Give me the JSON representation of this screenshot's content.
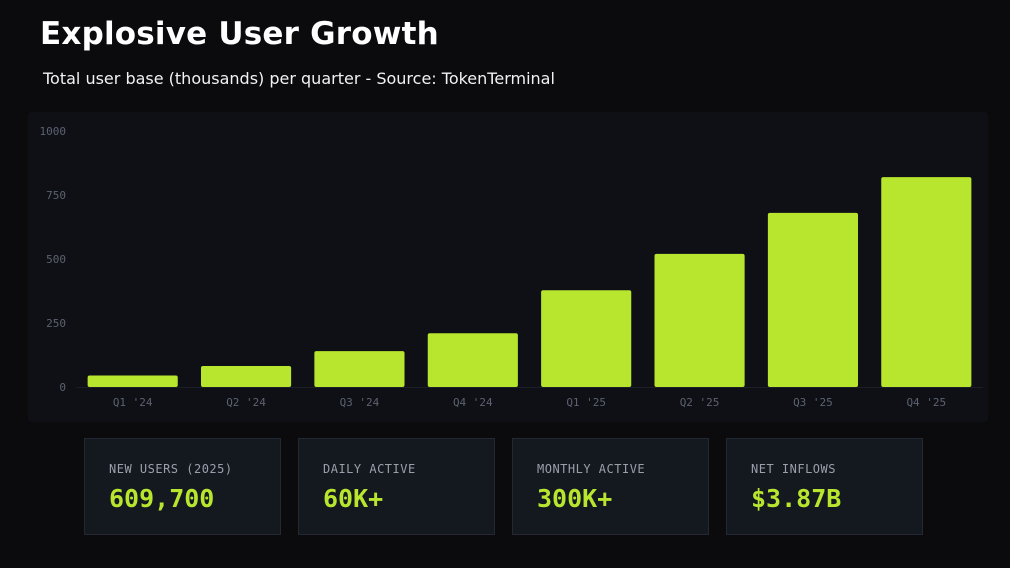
{
  "header": {
    "title": "Explosive User Growth",
    "subtitle": "Total user base (thousands) per quarter - Source: TokenTerminal"
  },
  "colors": {
    "background": "#0b0b0e",
    "panel": "#0e1016",
    "accent": "#b8e62e",
    "muted_text": "#5d6270"
  },
  "chart_data": {
    "type": "bar",
    "categories": [
      "Q1 '24",
      "Q2 '24",
      "Q3 '24",
      "Q4 '24",
      "Q1 '25",
      "Q2 '25",
      "Q3 '25",
      "Q4 '25"
    ],
    "values": [
      45,
      82,
      140,
      210,
      378,
      520,
      680,
      820
    ],
    "title": "Explosive User Growth",
    "subtitle": "Total user base (thousands) per quarter - Source: TokenTerminal",
    "ylim": [
      0,
      1000
    ],
    "yticks": [
      0,
      250,
      500,
      750,
      1000
    ],
    "grid": false,
    "bar_color": "#b8e62e"
  },
  "stats": [
    {
      "label": "NEW USERS (2025)",
      "value": "609,700"
    },
    {
      "label": "DAILY ACTIVE",
      "value": "60K+"
    },
    {
      "label": "MONTHLY ACTIVE",
      "value": "300K+"
    },
    {
      "label": "NET INFLOWS",
      "value": "$3.87B"
    }
  ]
}
